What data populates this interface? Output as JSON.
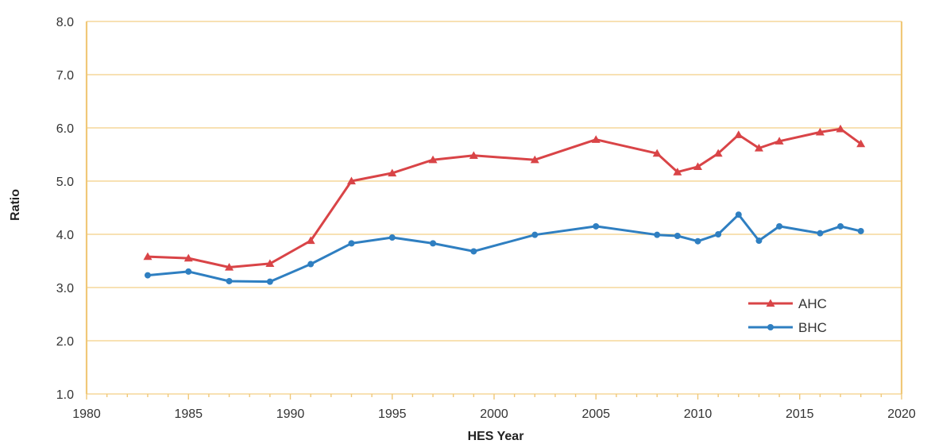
{
  "chart_data": {
    "type": "line",
    "title": "",
    "xlabel": "HES Year",
    "ylabel": "Ratio",
    "xlim": [
      1980,
      2020
    ],
    "ylim": [
      1.0,
      8.0
    ],
    "x_ticks": [
      "1980",
      "1985",
      "1990",
      "1995",
      "2000",
      "2005",
      "2010",
      "2015",
      "2020"
    ],
    "y_ticks": [
      "1.0",
      "2.0",
      "3.0",
      "4.0",
      "5.0",
      "6.0",
      "7.0",
      "8.0"
    ],
    "grid": "horizontal",
    "legend_position": "bottom-right",
    "colors": {
      "grid": "#f6d79a",
      "axis": "#f0c878",
      "AHC": "#d94447",
      "BHC": "#2f7fc1"
    },
    "series": [
      {
        "name": "AHC",
        "marker": "triangle",
        "x": [
          1983,
          1985,
          1987,
          1989,
          1991,
          1993,
          1995,
          1997,
          1999,
          2002,
          2005,
          2008,
          2009,
          2010,
          2011,
          2012,
          2013,
          2014,
          2016,
          2017,
          2018
        ],
        "y": [
          3.58,
          3.55,
          3.38,
          3.45,
          3.88,
          5.0,
          5.15,
          5.4,
          5.48,
          5.4,
          5.78,
          5.52,
          5.17,
          5.27,
          5.52,
          5.87,
          5.62,
          5.75,
          5.92,
          5.98,
          5.7
        ]
      },
      {
        "name": "BHC",
        "marker": "circle",
        "x": [
          1983,
          1985,
          1987,
          1989,
          1991,
          1993,
          1995,
          1997,
          1999,
          2002,
          2005,
          2008,
          2009,
          2010,
          2011,
          2012,
          2013,
          2014,
          2016,
          2017,
          2018
        ],
        "y": [
          3.23,
          3.3,
          3.12,
          3.11,
          3.44,
          3.83,
          3.94,
          3.83,
          3.68,
          3.99,
          4.15,
          3.99,
          3.97,
          3.87,
          4.0,
          4.37,
          3.88,
          4.15,
          4.02,
          4.15,
          4.06
        ]
      }
    ]
  }
}
